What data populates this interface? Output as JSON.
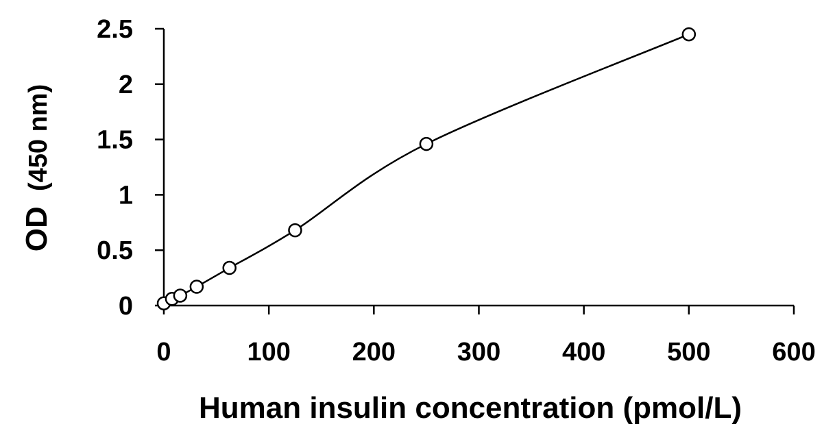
{
  "chart_data": {
    "type": "scatter",
    "xlabel": "Human insulin concentration (pmol/L)",
    "ylabel_main": "OD",
    "ylabel_unit": "(450 nm)",
    "xlim": [
      0,
      600
    ],
    "ylim": [
      0,
      2.5
    ],
    "x_ticks": [
      0,
      100,
      200,
      300,
      400,
      500,
      600
    ],
    "y_ticks": [
      0,
      0.5,
      1,
      1.5,
      2,
      2.5
    ],
    "x_tick_labels": [
      "0",
      "100",
      "200",
      "300",
      "400",
      "500",
      "600"
    ],
    "y_tick_labels": [
      "0",
      "0.5",
      "1",
      "1.5",
      "2",
      "2.5"
    ],
    "grid": false,
    "series": [
      {
        "points": [
          {
            "x": 0,
            "y": 0.02
          },
          {
            "x": 7.8,
            "y": 0.06
          },
          {
            "x": 15.6,
            "y": 0.09
          },
          {
            "x": 31.25,
            "y": 0.17
          },
          {
            "x": 62.5,
            "y": 0.34
          },
          {
            "x": 125,
            "y": 0.68
          },
          {
            "x": 250,
            "y": 1.46
          },
          {
            "x": 500,
            "y": 2.45
          }
        ],
        "marker": "open-circle",
        "fit_line": true
      }
    ]
  }
}
